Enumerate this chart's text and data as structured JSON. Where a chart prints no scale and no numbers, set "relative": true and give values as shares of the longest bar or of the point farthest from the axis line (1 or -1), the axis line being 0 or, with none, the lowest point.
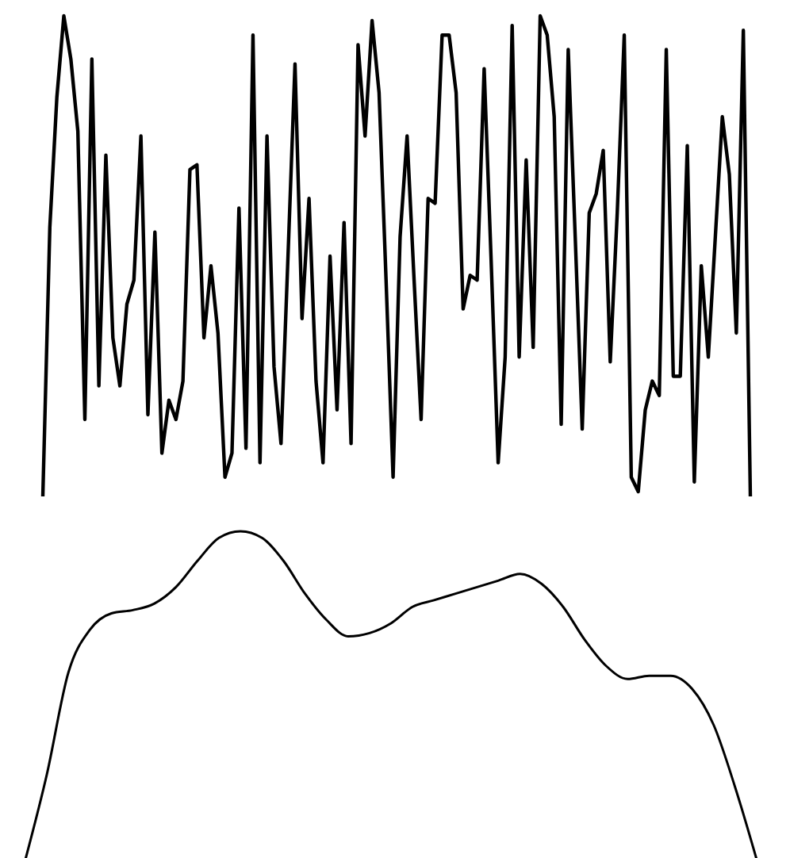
{
  "chart_data": [
    {
      "type": "line",
      "relative": true,
      "categories": [
        null,
        null,
        null,
        null,
        null,
        null,
        null,
        null,
        null,
        null,
        null,
        null,
        null,
        null,
        null,
        null,
        null,
        null,
        null,
        null,
        null,
        null,
        null,
        null,
        null,
        null,
        null,
        null,
        null,
        null,
        null,
        null,
        null,
        null,
        null,
        null,
        null,
        null,
        null,
        null,
        null,
        null,
        null,
        null,
        null,
        null,
        null,
        null,
        null,
        null,
        null,
        null,
        null,
        null,
        null,
        null,
        null,
        null,
        null,
        null,
        null,
        null,
        null,
        null,
        null,
        null,
        null,
        null,
        null,
        null,
        null,
        null,
        null,
        null,
        null,
        null,
        null,
        null,
        null,
        null,
        null,
        null,
        null,
        null,
        null,
        null,
        null,
        null,
        null,
        null,
        null,
        null,
        null,
        null,
        null,
        null,
        null,
        null,
        null,
        null,
        null,
        null
      ],
      "series": [
        {
          "color": "#000000",
          "values": [
            0,
            0.56,
            0.83,
            1.0,
            0.91,
            0.76,
            0.16,
            0.91,
            0.23,
            0.71,
            0.33,
            0.23,
            0.4,
            0.45,
            0.75,
            0.17,
            0.55,
            0.09,
            0.2,
            0.16,
            0.24,
            0.68,
            0.69,
            0.33,
            0.48,
            0.34,
            0.04,
            0.09,
            0.6,
            0.1,
            0.96,
            0.07,
            0.75,
            0.27,
            0.11,
            0.5,
            0.9,
            0.37,
            0.62,
            0.24,
            0.07,
            0.5,
            0.18,
            0.57,
            0.11,
            0.94,
            0.75,
            0.99,
            0.84,
            0.45,
            0.04,
            0.54,
            0.75,
            0.45,
            0.16,
            0.62,
            0.61,
            0.96,
            0.96,
            0.84,
            0.39,
            0.46,
            0.45,
            0.89,
            0.49,
            0.07,
            0.29,
            0.98,
            0.29,
            0.7,
            0.31,
            1.0,
            0.96,
            0.79,
            0.15,
            0.93,
            0.54,
            0.14,
            0.59,
            0.63,
            0.72,
            0.28,
            0.59,
            0.96,
            0.04,
            0.01,
            0.18,
            0.24,
            0.21,
            0.93,
            0.25,
            0.25,
            0.73,
            0.03,
            0.48,
            0.29,
            0.54,
            0.79,
            0.67,
            0.34,
            0.97,
            0
          ]
        }
      ]
    },
    {
      "type": "line",
      "relative": true,
      "categories": [
        null,
        null,
        null,
        null,
        null,
        null,
        null,
        null,
        null,
        null,
        null,
        null,
        null,
        null,
        null,
        null,
        null,
        null,
        null,
        null,
        null,
        null,
        null,
        null,
        null,
        null,
        null,
        null,
        null,
        null,
        null,
        null,
        null,
        null,
        null
      ],
      "series": [
        {
          "color": "#000000",
          "values": [
            0,
            0.26,
            0.57,
            0.7,
            0.75,
            0.76,
            0.78,
            0.83,
            0.91,
            0.98,
            1.0,
            0.98,
            0.91,
            0.81,
            0.73,
            0.68,
            0.69,
            0.72,
            0.77,
            0.79,
            0.81,
            0.83,
            0.85,
            0.87,
            0.84,
            0.77,
            0.67,
            0.59,
            0.55,
            0.56,
            0.56,
            0.52,
            0.41,
            0.22,
            0
          ]
        }
      ]
    }
  ]
}
